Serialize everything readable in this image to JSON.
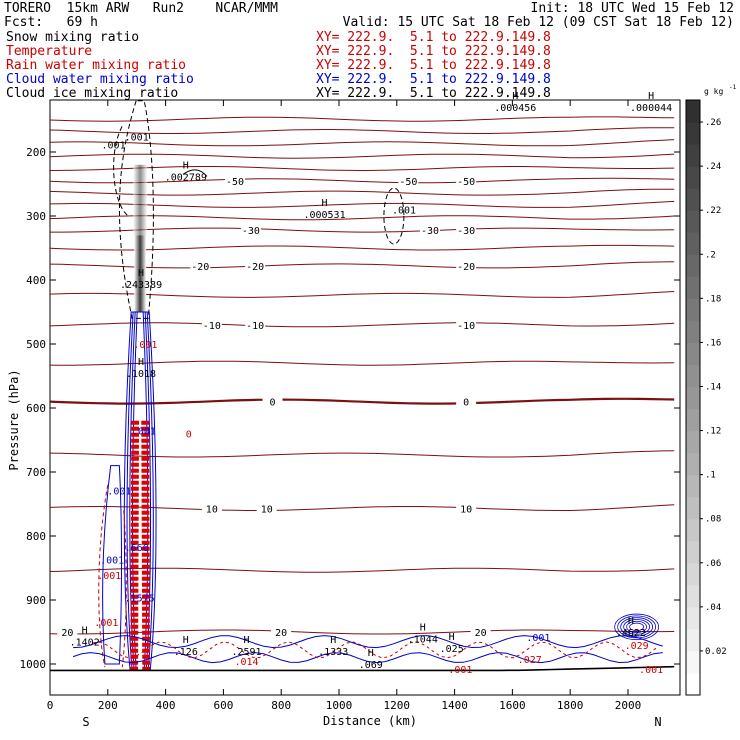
{
  "header": {
    "model_title": "TORERO  15km ARW   Run2    NCAR/MMM",
    "init": "Init: 18 UTC Wed 15 Feb 12",
    "fcst": "Fcst:   69 h",
    "valid": "Valid: 15 UTC Sat 18 Feb 12 (09 CST Sat 18 Feb 12)"
  },
  "fields": [
    {
      "label": "Snow mixing ratio",
      "xy": "XY= 222.9.  5.1 to 222.9.149.8",
      "color": "#000000"
    },
    {
      "label": "Temperature",
      "xy": "XY= 222.9.  5.1 to 222.9.149.8",
      "color": "#cc0000"
    },
    {
      "label": "Rain water mixing ratio",
      "xy": "XY= 222.9.  5.1 to 222.9.149.8",
      "color": "#cc0000"
    },
    {
      "label": "Cloud water mixing ratio",
      "xy": "XY= 222.9.  5.1 to 222.9.149.8",
      "color": "#0000cc"
    },
    {
      "label": "Cloud ice mixing ratio",
      "xy": "XY= 222.9.  5.1 to 222.9.149.8",
      "color": "#000000"
    }
  ],
  "chart_data": {
    "type": "contour",
    "xlabel": "Distance (km)",
    "ylabel": "Pressure (hPa)",
    "xlim": [
      0,
      2180
    ],
    "ylim": [
      1050,
      100
    ],
    "x_ticks": [
      0,
      200,
      400,
      600,
      800,
      1000,
      1200,
      1400,
      1600,
      1800,
      2000
    ],
    "y_ticks": [
      200,
      300,
      400,
      500,
      600,
      700,
      800,
      900,
      1000
    ],
    "x_end_labels": {
      "left": "S",
      "right": "N"
    },
    "colorbar": {
      "unit": "g kg",
      "unit_exp": "-1",
      "min": 0,
      "max": 0.27,
      "ticks": [
        "0.02",
        ".04",
        ".06",
        ".08",
        ".1",
        ".12",
        ".14",
        ".16",
        ".18",
        ".2",
        ".22",
        ".24",
        ".26"
      ]
    },
    "temperature_contours": [
      {
        "level": -50,
        "pressure": 245,
        "labels_km": [
          640,
          1240,
          1440
        ]
      },
      {
        "level": -30,
        "pressure": 322,
        "labels_km": [
          695,
          1315,
          1440
        ]
      },
      {
        "level": -20,
        "pressure": 378,
        "labels_km": [
          520,
          710,
          1440
        ]
      },
      {
        "level": -10,
        "pressure": 470,
        "labels_km": [
          560,
          710,
          1440
        ]
      },
      {
        "level": 0,
        "pressure": 590,
        "labels_km": [
          770,
          1440
        ]
      },
      {
        "level": 10,
        "pressure": 757,
        "labels_km": [
          560,
          750,
          1440
        ]
      },
      {
        "level": 20,
        "pressure": 950,
        "labels_km": [
          60,
          800,
          1490
        ]
      }
    ],
    "maxima": [
      {
        "marker": "H",
        "value": ".002789",
        "x_km": 470,
        "p": 238
      },
      {
        "marker": "H",
        "value": ".000531",
        "x_km": 950,
        "p": 297
      },
      {
        "marker": "H",
        "value": ".000456",
        "x_km": 1610,
        "p": 130
      },
      {
        "marker": "H",
        "value": ".000044",
        "x_km": 2080,
        "p": 130
      },
      {
        "marker": "H",
        "value": ".243389",
        "x_km": 315,
        "p": 406
      },
      {
        "marker": "H",
        "value": ".1018",
        "x_km": 315,
        "p": 545
      },
      {
        "marker": "H",
        "value": ".1402",
        "x_km": 120,
        "p": 965
      },
      {
        "marker": "H",
        "value": ".4622",
        "x_km": 2010,
        "p": 950
      },
      {
        "marker": "H",
        "value": ".2591",
        "x_km": 680,
        "p": 980
      },
      {
        "marker": "H",
        "value": ".1333",
        "x_km": 980,
        "p": 980
      },
      {
        "marker": "H",
        "value": ".1044",
        "x_km": 1290,
        "p": 960
      },
      {
        "marker": "H",
        "value": ".126",
        "x_km": 470,
        "p": 980
      },
      {
        "marker": "H",
        "value": ".069",
        "x_km": 1110,
        "p": 1000
      },
      {
        "marker": "H",
        "value": ".025",
        "x_km": 1390,
        "p": 975
      }
    ],
    "small_labels": [
      {
        "value": ".001",
        "x_km": 300,
        "p": 176,
        "color": "#000000"
      },
      {
        "value": ".001",
        "x_km": 220,
        "p": 188,
        "color": "#000000"
      },
      {
        "value": ".001",
        "x_km": 1225,
        "p": 290,
        "color": "#000000"
      },
      {
        "value": ".001",
        "x_km": 325,
        "p": 635,
        "color": "#0000cc"
      },
      {
        "value": ".001",
        "x_km": 330,
        "p": 500,
        "color": "#cc0000"
      },
      {
        "value": "0",
        "x_km": 480,
        "p": 640,
        "color": "#cc0000"
      },
      {
        "value": ".001",
        "x_km": 240,
        "p": 729,
        "color": "#0000cc"
      },
      {
        "value": ".001",
        "x_km": 215,
        "p": 837,
        "color": "#0000cc"
      },
      {
        "value": ".001",
        "x_km": 205,
        "p": 861,
        "color": "#cc0000"
      },
      {
        "value": ".001",
        "x_km": 195,
        "p": 934,
        "color": "#cc0000"
      },
      {
        "value": ".666",
        "x_km": 300,
        "p": 817,
        "color": "#0000cc"
      },
      {
        "value": ".1575",
        "x_km": 310,
        "p": 896,
        "color": "#0000cc"
      },
      {
        "value": ".014",
        "x_km": 680,
        "p": 995,
        "color": "#cc0000"
      },
      {
        "value": ".001",
        "x_km": 1690,
        "p": 958,
        "color": "#0000cc"
      },
      {
        "value": ".027",
        "x_km": 1660,
        "p": 992,
        "color": "#cc0000"
      },
      {
        "value": ".029",
        "x_km": 2030,
        "p": 970,
        "color": "#cc0000"
      },
      {
        "value": ".001",
        "x_km": 1420,
        "p": 1008,
        "color": "#cc0000"
      },
      {
        "value": ".001",
        "x_km": 2080,
        "p": 1008,
        "color": "#cc0000"
      }
    ]
  }
}
